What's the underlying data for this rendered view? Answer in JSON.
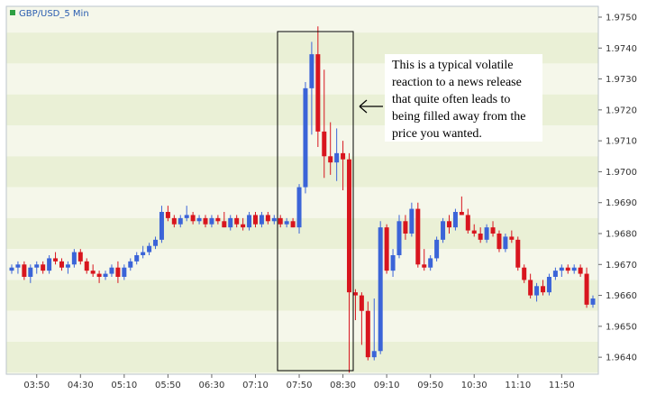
{
  "chart_data": {
    "type": "candlestick",
    "title": "GBP/USD_5 Min",
    "y_ticks": [
      "1.9640",
      "1.9650",
      "1.9660",
      "1.9670",
      "1.9680",
      "1.9690",
      "1.9700",
      "1.9710",
      "1.9720",
      "1.9730",
      "1.9740",
      "1.9750"
    ],
    "x_ticks": [
      "03:50",
      "04:30",
      "05:10",
      "05:50",
      "06:30",
      "07:10",
      "07:50",
      "08:30",
      "09:10",
      "09:50",
      "10:30",
      "11:10",
      "11:50"
    ],
    "ylim": [
      1.96345,
      1.97535
    ],
    "grid": "horizontal bands",
    "annotation": {
      "lines": [
        "This is a typical volatile",
        "reaction to a news release",
        "that quite often leads to",
        "being filled away from the",
        "price you wanted."
      ],
      "highlight_range": [
        "07:25",
        "08:35"
      ]
    },
    "candles": [
      [
        1.9668,
        1.967,
        1.9667,
        1.9669
      ],
      [
        1.9669,
        1.9671,
        1.9667,
        1.967
      ],
      [
        1.967,
        1.9671,
        1.9665,
        1.9666
      ],
      [
        1.9666,
        1.967,
        1.9664,
        1.9669
      ],
      [
        1.9669,
        1.9671,
        1.9667,
        1.967
      ],
      [
        1.967,
        1.9671,
        1.9667,
        1.9668
      ],
      [
        1.9668,
        1.9673,
        1.9667,
        1.9672
      ],
      [
        1.9672,
        1.9674,
        1.967,
        1.9671
      ],
      [
        1.9671,
        1.9672,
        1.9668,
        1.9669
      ],
      [
        1.9669,
        1.9671,
        1.9667,
        1.967
      ],
      [
        1.967,
        1.9675,
        1.9669,
        1.9674
      ],
      [
        1.9674,
        1.9675,
        1.967,
        1.9671
      ],
      [
        1.9671,
        1.9672,
        1.9667,
        1.9668
      ],
      [
        1.9668,
        1.967,
        1.9666,
        1.9667
      ],
      [
        1.9667,
        1.9668,
        1.9664,
        1.9666
      ],
      [
        1.9666,
        1.9668,
        1.9665,
        1.9667
      ],
      [
        1.9667,
        1.967,
        1.9666,
        1.9669
      ],
      [
        1.9669,
        1.9671,
        1.9664,
        1.9666
      ],
      [
        1.9666,
        1.967,
        1.9665,
        1.9669
      ],
      [
        1.9669,
        1.9672,
        1.9668,
        1.9671
      ],
      [
        1.9671,
        1.9674,
        1.967,
        1.9673
      ],
      [
        1.9673,
        1.9676,
        1.9672,
        1.9674
      ],
      [
        1.9674,
        1.9677,
        1.9673,
        1.9676
      ],
      [
        1.9676,
        1.9679,
        1.9675,
        1.9678
      ],
      [
        1.9678,
        1.9689,
        1.9677,
        1.9687
      ],
      [
        1.9687,
        1.9689,
        1.9684,
        1.9685
      ],
      [
        1.9685,
        1.9686,
        1.9682,
        1.9683
      ],
      [
        1.9683,
        1.9686,
        1.9682,
        1.9685
      ],
      [
        1.9685,
        1.9689,
        1.9684,
        1.9686
      ],
      [
        1.9686,
        1.9687,
        1.9683,
        1.9684
      ],
      [
        1.9684,
        1.9686,
        1.9683,
        1.9685
      ],
      [
        1.9685,
        1.9686,
        1.9682,
        1.9683
      ],
      [
        1.9683,
        1.9686,
        1.9682,
        1.9685
      ],
      [
        1.9685,
        1.9686,
        1.9683,
        1.9684
      ],
      [
        1.9684,
        1.9687,
        1.9682,
        1.9682
      ],
      [
        1.9682,
        1.9686,
        1.9681,
        1.9685
      ],
      [
        1.9685,
        1.9686,
        1.9682,
        1.9683
      ],
      [
        1.9683,
        1.9685,
        1.9681,
        1.9682
      ],
      [
        1.9682,
        1.9687,
        1.9681,
        1.9686
      ],
      [
        1.9686,
        1.9687,
        1.9682,
        1.9683
      ],
      [
        1.9683,
        1.9687,
        1.9682,
        1.9686
      ],
      [
        1.9686,
        1.9687,
        1.9683,
        1.9684
      ],
      [
        1.9684,
        1.9686,
        1.9683,
        1.9685
      ],
      [
        1.9685,
        1.9686,
        1.9682,
        1.9683
      ],
      [
        1.9683,
        1.9685,
        1.9682,
        1.9684
      ],
      [
        1.9684,
        1.9685,
        1.9682,
        1.9682
      ],
      [
        1.9682,
        1.9696,
        1.968,
        1.9695
      ],
      [
        1.9695,
        1.9729,
        1.9693,
        1.9727
      ],
      [
        1.9727,
        1.9742,
        1.9712,
        1.9738
      ],
      [
        1.9738,
        1.9747,
        1.9708,
        1.9713
      ],
      [
        1.9713,
        1.9733,
        1.9698,
        1.9705
      ],
      [
        1.9705,
        1.9716,
        1.9699,
        1.9703
      ],
      [
        1.9703,
        1.9714,
        1.9697,
        1.9706
      ],
      [
        1.9706,
        1.971,
        1.9694,
        1.9704
      ],
      [
        1.9704,
        1.9706,
        1.9635,
        1.9661
      ],
      [
        1.9661,
        1.9662,
        1.9652,
        1.966
      ],
      [
        1.966,
        1.9661,
        1.9644,
        1.9655
      ],
      [
        1.9655,
        1.9658,
        1.9639,
        1.964
      ],
      [
        1.964,
        1.9659,
        1.9639,
        1.9642
      ],
      [
        1.9642,
        1.9684,
        1.9641,
        1.9682
      ],
      [
        1.9682,
        1.9683,
        1.9667,
        1.9668
      ],
      [
        1.9668,
        1.9675,
        1.9666,
        1.9673
      ],
      [
        1.9673,
        1.9686,
        1.9672,
        1.9684
      ],
      [
        1.9684,
        1.9686,
        1.9678,
        1.968
      ],
      [
        1.968,
        1.969,
        1.9679,
        1.9688
      ],
      [
        1.9688,
        1.969,
        1.9669,
        1.967
      ],
      [
        1.967,
        1.9675,
        1.9668,
        1.9669
      ],
      [
        1.9669,
        1.9673,
        1.9668,
        1.9672
      ],
      [
        1.9672,
        1.9679,
        1.9671,
        1.9678
      ],
      [
        1.9678,
        1.9685,
        1.9677,
        1.9684
      ],
      [
        1.9684,
        1.9686,
        1.968,
        1.9682
      ],
      [
        1.9682,
        1.9688,
        1.9681,
        1.9687
      ],
      [
        1.9687,
        1.9692,
        1.9686,
        1.9686
      ],
      [
        1.9686,
        1.9688,
        1.968,
        1.9681
      ],
      [
        1.9681,
        1.9683,
        1.9679,
        1.968
      ],
      [
        1.968,
        1.9682,
        1.9677,
        1.9678
      ],
      [
        1.9678,
        1.9683,
        1.9677,
        1.9682
      ],
      [
        1.9682,
        1.9684,
        1.9679,
        1.968
      ],
      [
        1.968,
        1.9681,
        1.9674,
        1.9675
      ],
      [
        1.9675,
        1.968,
        1.9674,
        1.9679
      ],
      [
        1.9679,
        1.9681,
        1.9677,
        1.9678
      ],
      [
        1.9678,
        1.9679,
        1.9668,
        1.9669
      ],
      [
        1.9669,
        1.967,
        1.9664,
        1.9665
      ],
      [
        1.9665,
        1.9667,
        1.9659,
        1.966
      ],
      [
        1.966,
        1.9664,
        1.9658,
        1.9663
      ],
      [
        1.9663,
        1.9665,
        1.966,
        1.9661
      ],
      [
        1.9661,
        1.9667,
        1.966,
        1.9666
      ],
      [
        1.9666,
        1.9669,
        1.9665,
        1.9668
      ],
      [
        1.9668,
        1.967,
        1.9666,
        1.9669
      ],
      [
        1.9669,
        1.967,
        1.9667,
        1.9668
      ],
      [
        1.9668,
        1.967,
        1.9667,
        1.9669
      ],
      [
        1.9669,
        1.967,
        1.9666,
        1.9667
      ],
      [
        1.9667,
        1.9669,
        1.9656,
        1.9657
      ],
      [
        1.9657,
        1.966,
        1.9656,
        1.9659
      ]
    ]
  },
  "colors": {
    "up": "#3b64d8",
    "down": "#d8151e",
    "band_light": "#f5f7ea",
    "band_dark": "#eaf0d6",
    "frame": "#bcc6cc",
    "legend_marker": "#2ea043"
  }
}
